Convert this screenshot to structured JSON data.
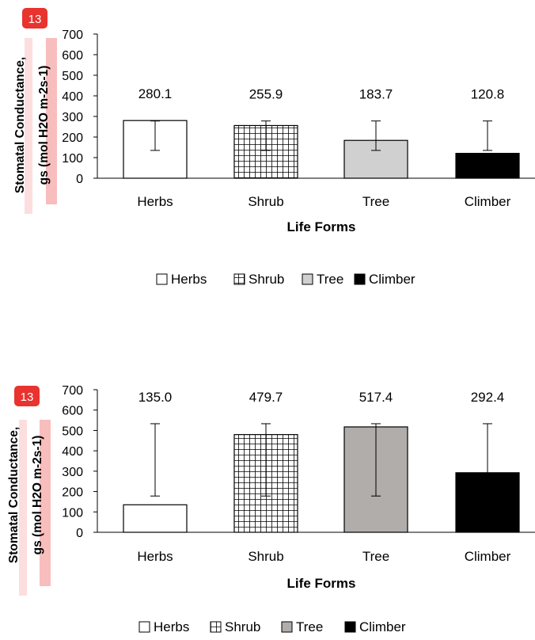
{
  "chart_data": [
    {
      "type": "bar",
      "title": "",
      "xlabel": "Life Forms",
      "ylabel_lines": [
        "Stomatal Conductance,",
        "gs (mol H2O m-2s-1)"
      ],
      "ylim": [
        0,
        700
      ],
      "yticks": [
        0,
        100,
        200,
        300,
        400,
        500,
        600,
        700
      ],
      "categories": [
        "Herbs",
        "Shrub",
        "Tree",
        "Climber"
      ],
      "values": [
        280.1,
        255.9,
        183.7,
        120.8
      ],
      "value_labels": [
        "280.1",
        "255.9",
        "183.7",
        "120.8"
      ],
      "error_low": [
        135,
        135,
        135,
        135
      ],
      "error_high": [
        278,
        278,
        278,
        278
      ],
      "fills": [
        "#ffffff",
        "pattern-grid",
        "#d0d0d0",
        "#000000"
      ],
      "legend": [
        "Herbs",
        "Shrub",
        "Tree",
        "Climber"
      ],
      "legend_position": "bottom",
      "badge": "13"
    },
    {
      "type": "bar",
      "title": "",
      "xlabel": "Life Forms",
      "ylabel_lines": [
        "Stomatal Conductance,",
        "gs (mol H2O m-2s-1)"
      ],
      "ylim": [
        0,
        700
      ],
      "yticks": [
        0,
        100,
        200,
        300,
        400,
        500,
        600,
        700
      ],
      "categories": [
        "Herbs",
        "Shrub",
        "Tree",
        "Climber"
      ],
      "values": [
        135.0,
        479.7,
        517.4,
        292.4
      ],
      "value_labels": [
        "135.0",
        "479.7",
        "517.4",
        "292.4"
      ],
      "error_low": [
        178,
        178,
        178,
        0
      ],
      "error_high": [
        533,
        533,
        533,
        533
      ],
      "fills": [
        "#ffffff",
        "pattern-grid",
        "#b0adab",
        "#000000"
      ],
      "legend": [
        "Herbs",
        "Shrub",
        "Tree",
        "Climber"
      ],
      "legend_position": "bottom",
      "badge": "13"
    }
  ]
}
